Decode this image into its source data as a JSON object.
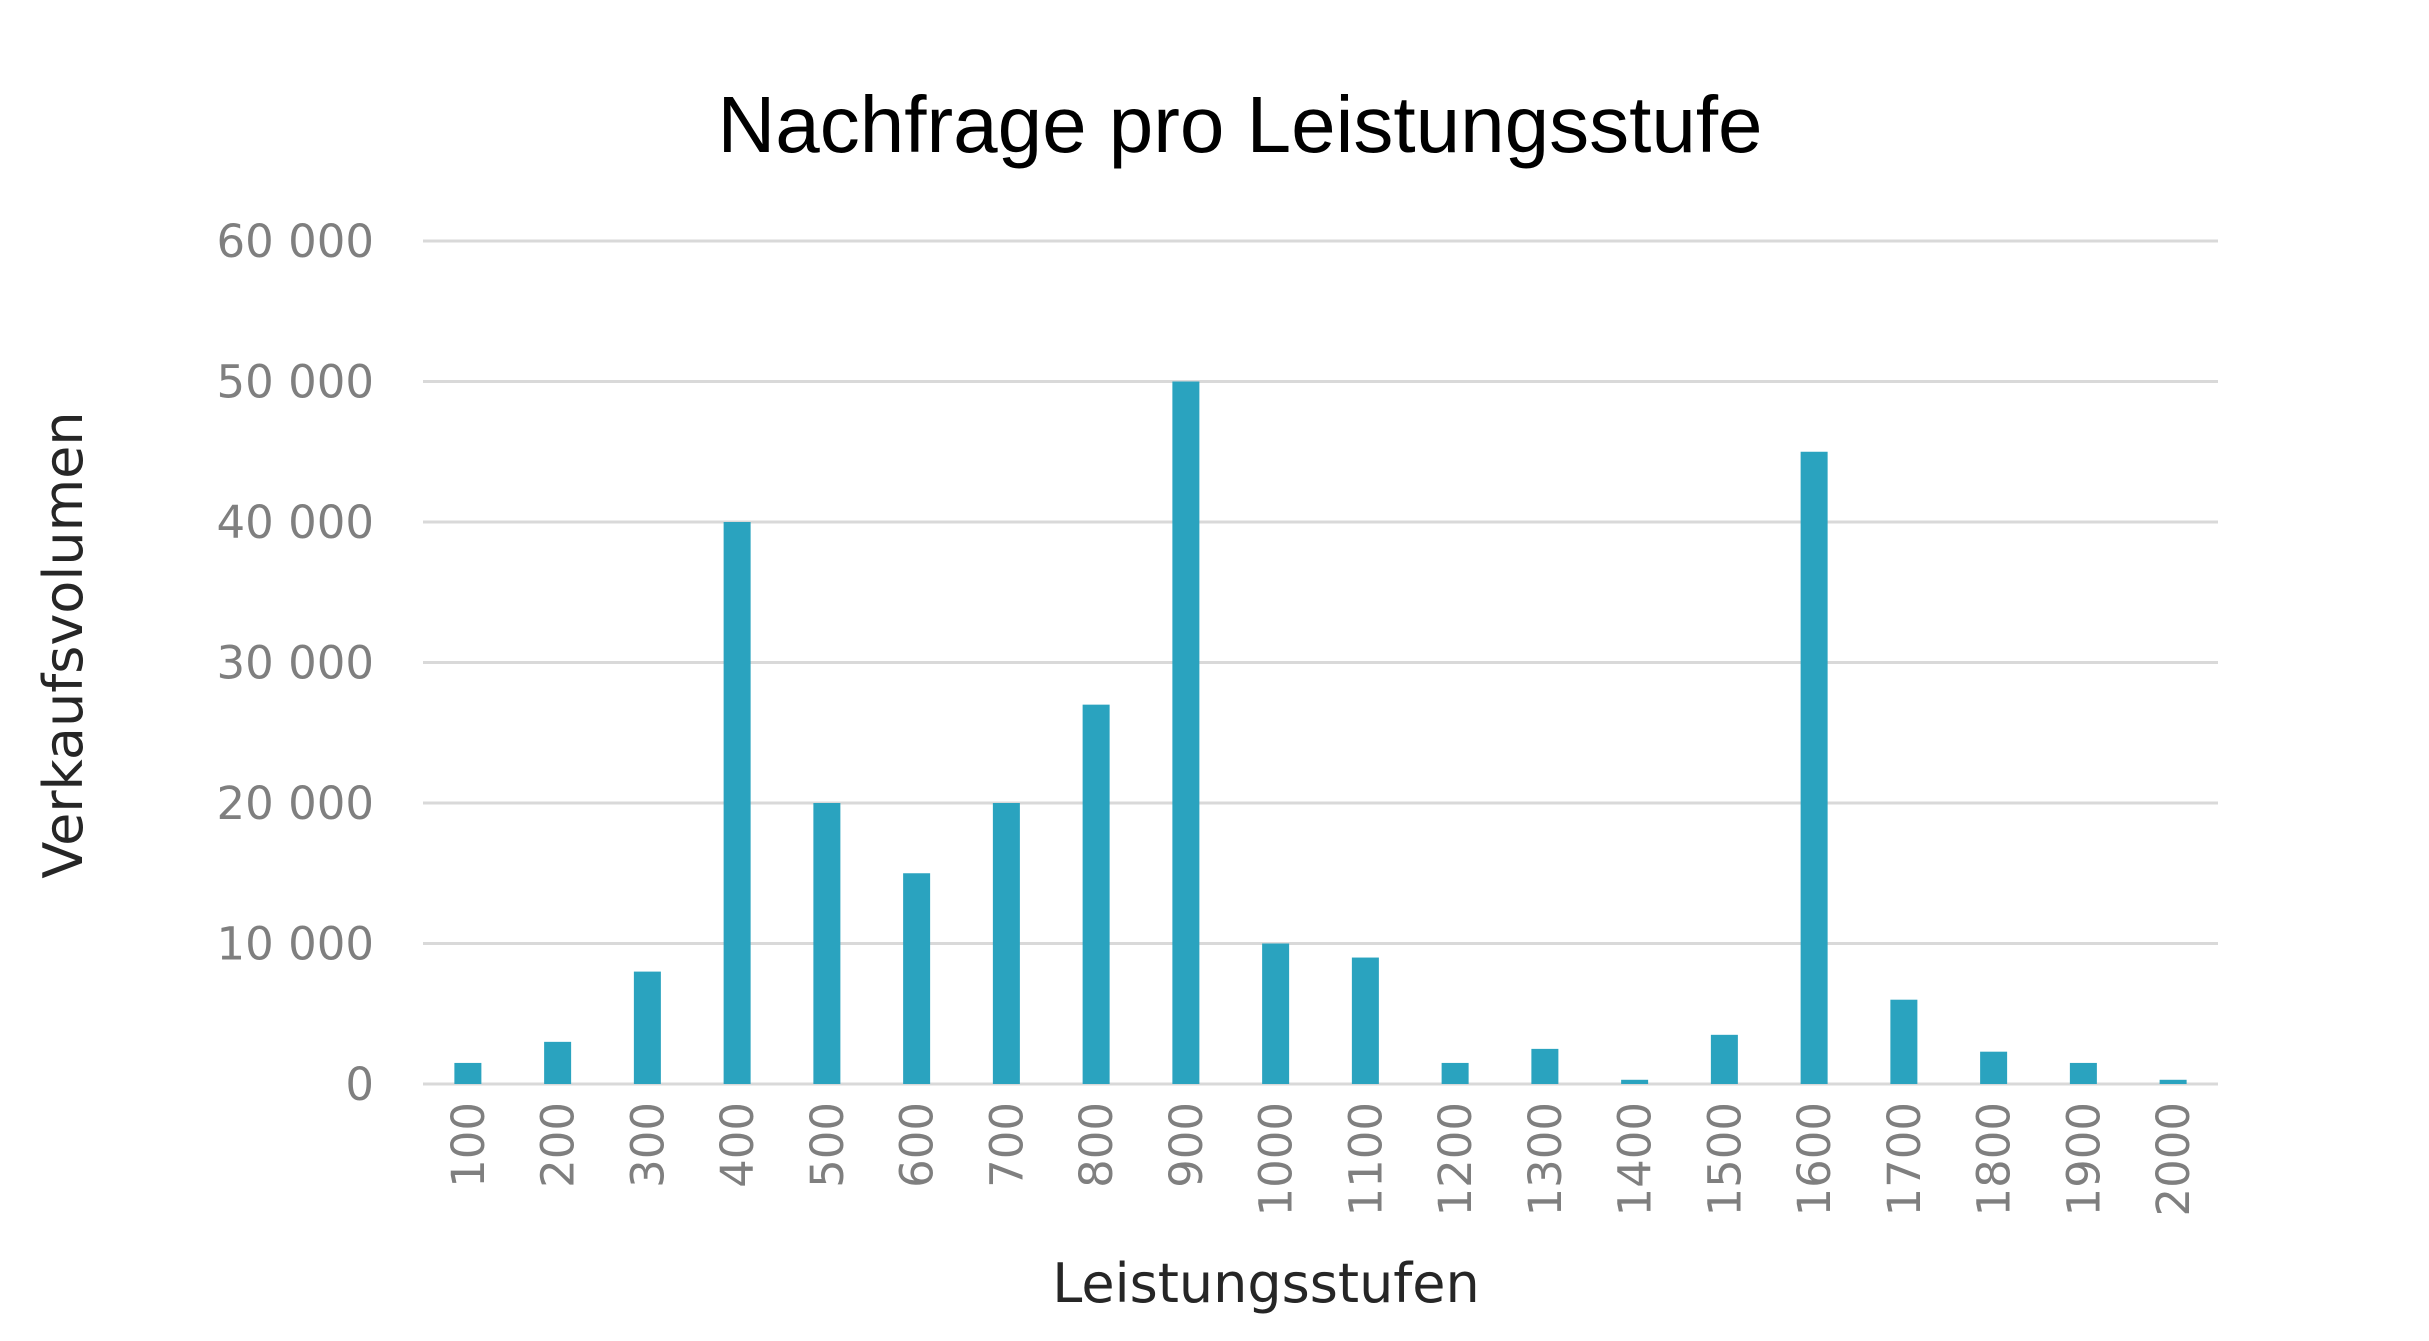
{
  "chart_data": {
    "type": "bar",
    "title": "Nachfrage pro Leistungsstufe",
    "xlabel": "Leistungsstufen",
    "ylabel": "Verkaufsvolumen",
    "categories": [
      "100",
      "200",
      "300",
      "400",
      "500",
      "600",
      "700",
      "800",
      "900",
      "1000",
      "1100",
      "1200",
      "1300",
      "1400",
      "1500",
      "1600",
      "1700",
      "1800",
      "1900",
      "2000"
    ],
    "values": [
      1500,
      3000,
      8000,
      40000,
      20000,
      15000,
      20000,
      27000,
      50000,
      10000,
      9000,
      1500,
      2500,
      300,
      3500,
      45000,
      6000,
      2300,
      1500,
      300
    ],
    "ylim": [
      0,
      60000
    ],
    "yticks": [
      0,
      10000,
      20000,
      30000,
      40000,
      50000,
      60000
    ],
    "ytick_labels": [
      "0",
      "10 000",
      "20 000",
      "30 000",
      "40 000",
      "50 000",
      "60 000"
    ],
    "grid": true,
    "legend": "none",
    "bar_color": "#2aa3bf"
  }
}
